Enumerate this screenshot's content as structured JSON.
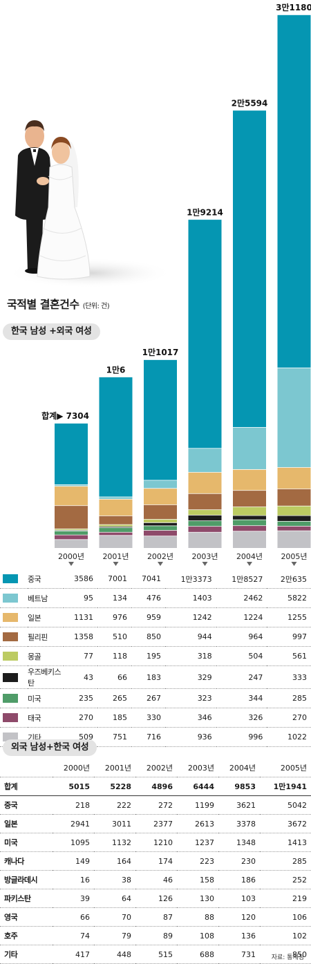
{
  "title": "국적별 결혼건수",
  "unit": "(단위: 건)",
  "section1_label": "한국 남성 +외국 여성",
  "section2_label": "외국 남성+한국 여성",
  "source": "자료: 통계청",
  "total_marker": "합계▶",
  "colors": {
    "중국": "#0596b2",
    "베트남": "#7cc7d0",
    "일본": "#e6b86c",
    "필리핀": "#a36a42",
    "몽골": "#bccb62",
    "우즈베키스탄": "#1c1c1c",
    "미국": "#4f9c68",
    "태국": "#8e4a6a",
    "기타": "#c2c2c6"
  },
  "chart_data": [
    {
      "type": "bar",
      "stacked": true,
      "categories": [
        "2000년",
        "2001년",
        "2002년",
        "2003년",
        "2004년",
        "2005년"
      ],
      "total_labels": [
        "7304",
        "1만6",
        "1만1017",
        "1만9214",
        "2만5594",
        "3만1180"
      ],
      "totals": [
        7304,
        10006,
        11017,
        19214,
        25594,
        31180
      ],
      "series": [
        {
          "name": "중국",
          "values": [
            3586,
            7001,
            7041,
            13373,
            18527,
            20635
          ],
          "labels": [
            "3586",
            "7001",
            "7041",
            "1만3373",
            "1만8527",
            "2만635"
          ]
        },
        {
          "name": "베트남",
          "values": [
            95,
            134,
            476,
            1403,
            2462,
            5822
          ],
          "labels": [
            "95",
            "134",
            "476",
            "1403",
            "2462",
            "5822"
          ]
        },
        {
          "name": "일본",
          "values": [
            1131,
            976,
            959,
            1242,
            1224,
            1255
          ],
          "labels": [
            "1131",
            "976",
            "959",
            "1242",
            "1224",
            "1255"
          ]
        },
        {
          "name": "필리핀",
          "values": [
            1358,
            510,
            850,
            944,
            964,
            997
          ],
          "labels": [
            "1358",
            "510",
            "850",
            "944",
            "964",
            "997"
          ]
        },
        {
          "name": "몽골",
          "values": [
            77,
            118,
            195,
            318,
            504,
            561
          ],
          "labels": [
            "77",
            "118",
            "195",
            "318",
            "504",
            "561"
          ]
        },
        {
          "name": "우즈베키스탄",
          "values": [
            43,
            66,
            183,
            329,
            247,
            333
          ],
          "labels": [
            "43",
            "66",
            "183",
            "329",
            "247",
            "333"
          ]
        },
        {
          "name": "미국",
          "values": [
            235,
            265,
            267,
            323,
            344,
            285
          ],
          "labels": [
            "235",
            "265",
            "267",
            "323",
            "344",
            "285"
          ]
        },
        {
          "name": "태국",
          "values": [
            270,
            185,
            330,
            346,
            326,
            270
          ],
          "labels": [
            "270",
            "185",
            "330",
            "346",
            "326",
            "270"
          ]
        },
        {
          "name": "기타",
          "values": [
            509,
            751,
            716,
            936,
            996,
            1022
          ],
          "labels": [
            "509",
            "751",
            "716",
            "936",
            "996",
            "1022"
          ]
        }
      ]
    },
    {
      "type": "table",
      "columns": [
        "2000년",
        "2001년",
        "2002년",
        "2003년",
        "2004년",
        "2005년"
      ],
      "rows": [
        {
          "name": "합계",
          "values": [
            "5015",
            "5228",
            "4896",
            "6444",
            "9853",
            "1만1941"
          ]
        },
        {
          "name": "중국",
          "values": [
            "218",
            "222",
            "272",
            "1199",
            "3621",
            "5042"
          ]
        },
        {
          "name": "일본",
          "values": [
            "2941",
            "3011",
            "2377",
            "2613",
            "3378",
            "3672"
          ]
        },
        {
          "name": "미국",
          "values": [
            "1095",
            "1132",
            "1210",
            "1237",
            "1348",
            "1413"
          ]
        },
        {
          "name": "캐나다",
          "values": [
            "149",
            "164",
            "174",
            "223",
            "230",
            "285"
          ]
        },
        {
          "name": "방글라데시",
          "values": [
            "16",
            "38",
            "46",
            "158",
            "186",
            "252"
          ]
        },
        {
          "name": "파키스탄",
          "values": [
            "39",
            "64",
            "126",
            "130",
            "103",
            "219"
          ]
        },
        {
          "name": "영국",
          "values": [
            "66",
            "70",
            "87",
            "88",
            "120",
            "106"
          ]
        },
        {
          "name": "호주",
          "values": [
            "74",
            "79",
            "89",
            "108",
            "136",
            "102"
          ]
        },
        {
          "name": "기타",
          "values": [
            "417",
            "448",
            "515",
            "688",
            "731",
            "850"
          ]
        }
      ]
    }
  ]
}
